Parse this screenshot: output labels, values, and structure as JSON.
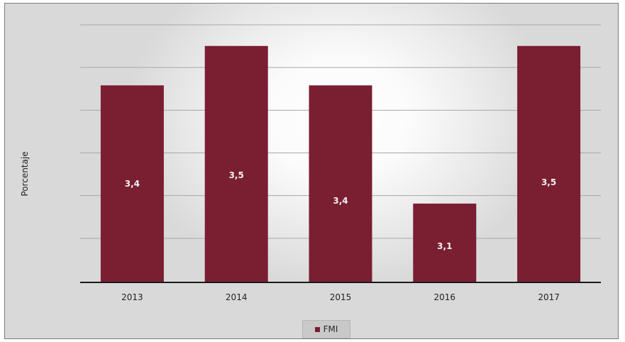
{
  "chart_data": {
    "type": "bar",
    "categories": [
      "2013",
      "2014",
      "2015",
      "2016",
      "2017"
    ],
    "series": [
      {
        "name": "FMI",
        "values": [
          3.4,
          3.5,
          3.4,
          3.1,
          3.5
        ],
        "labels": [
          "3,4",
          "3,5",
          "3,4",
          "3,1",
          "3,5"
        ],
        "color": "#7a1e32"
      }
    ],
    "title": "",
    "xlabel": "",
    "ylabel": "Porcentaje",
    "ylim": [
      2.9,
      3.55
    ],
    "grid": true,
    "legend_placement": "bottom"
  }
}
